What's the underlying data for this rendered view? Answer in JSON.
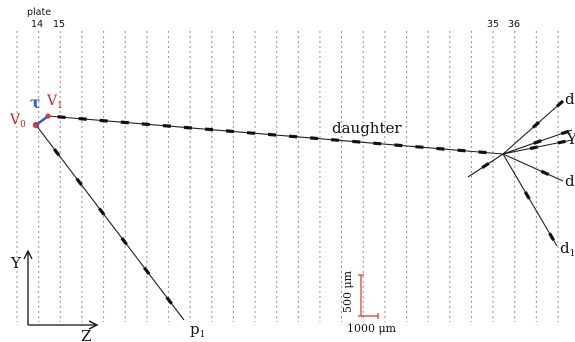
{
  "header": {
    "plate_label": "plate",
    "plate_numbers": [
      "14",
      "15",
      "35",
      "36"
    ]
  },
  "vertices": {
    "v0": {
      "main": "V",
      "sub": "0"
    },
    "v1": {
      "main": "V",
      "sub": "1"
    },
    "tau": "τ"
  },
  "tracks": {
    "daughter": "daughter",
    "p1": {
      "main": "p",
      "sub": "1"
    },
    "d_labels": [
      "d",
      "Y",
      "d",
      "d"
    ],
    "d_sub": "1"
  },
  "axes": {
    "y": "Y",
    "z": "Z"
  },
  "scale_bars": {
    "vertical": "500 μm",
    "horizontal": "1000 μm"
  },
  "colors": {
    "vertex_red": "#e03a2a",
    "vertex_blue": "#2a5bd7",
    "scale_red": "#d23a2a",
    "plate_lines": "#9a9a9a"
  }
}
